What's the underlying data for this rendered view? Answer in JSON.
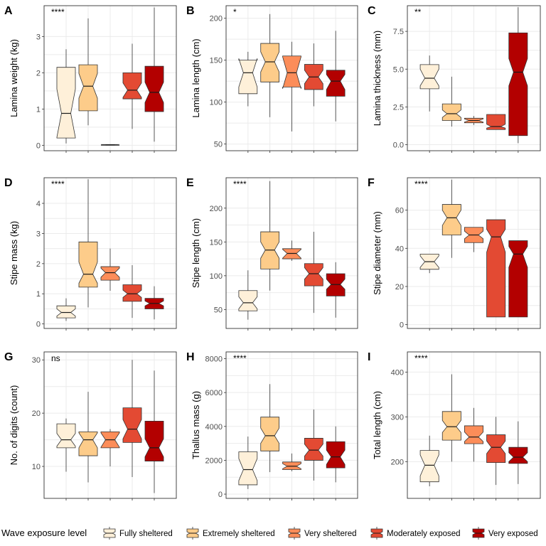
{
  "colors": [
    "#FEF0D9",
    "#FDCC8A",
    "#FC8D59",
    "#E34A33",
    "#B30000"
  ],
  "legend": {
    "title": "Wave exposure level",
    "entries": [
      "Fully sheltered",
      "Extremely sheltered",
      "Very sheltered",
      "Moderately exposed",
      "Very exposed"
    ]
  },
  "chart_data": [
    {
      "type": "box",
      "letter": "A",
      "sig": "****",
      "ylabel": "Lamina weight (kg)",
      "ylim": [
        -0.15,
        3.85
      ],
      "yticks": [
        0,
        1,
        2,
        3
      ],
      "boxes": [
        {
          "min": 0.05,
          "q1": 0.2,
          "med": 0.88,
          "q3": 2.15,
          "max": 2.65,
          "nlo": 0.22,
          "nhi": 1.55
        },
        {
          "min": 0.55,
          "q1": 0.95,
          "med": 1.63,
          "q3": 2.22,
          "max": 3.5,
          "nlo": 1.3,
          "nhi": 1.98
        },
        {
          "min": 0.0,
          "q1": 0.0,
          "med": 0.01,
          "q3": 0.02,
          "max": 0.02,
          "nlo": 0.0,
          "nhi": 0.02
        },
        {
          "min": 0.45,
          "q1": 1.28,
          "med": 1.52,
          "q3": 2.0,
          "max": 2.8,
          "nlo": 1.32,
          "nhi": 1.72
        },
        {
          "min": 0.1,
          "q1": 0.93,
          "med": 1.46,
          "q3": 2.18,
          "max": 3.8,
          "nlo": 1.18,
          "nhi": 1.74
        }
      ]
    },
    {
      "type": "box",
      "letter": "B",
      "sig": "*",
      "ylabel": "Lamina length (cm)",
      "ylim": [
        42,
        215
      ],
      "yticks": [
        50,
        100,
        150,
        200
      ],
      "boxes": [
        {
          "min": 95,
          "q1": 110,
          "med": 135,
          "q3": 150,
          "max": 160,
          "nlo": 118,
          "nhi": 152
        },
        {
          "min": 82,
          "q1": 124,
          "med": 148,
          "q3": 170,
          "max": 205,
          "nlo": 136,
          "nhi": 160
        },
        {
          "min": 65,
          "q1": 118,
          "med": 135,
          "q3": 155,
          "max": 172,
          "nlo": 116,
          "nhi": 154
        },
        {
          "min": 95,
          "q1": 115,
          "med": 130,
          "q3": 145,
          "max": 170,
          "nlo": 122,
          "nhi": 138
        },
        {
          "min": 77,
          "q1": 107,
          "med": 125,
          "q3": 138,
          "max": 185,
          "nlo": 115,
          "nhi": 133
        }
      ]
    },
    {
      "type": "box",
      "letter": "C",
      "sig": "**",
      "ylabel": "Lamina thickness (mm)",
      "ylim": [
        -0.4,
        9.2
      ],
      "yticks": [
        0,
        2.5,
        5,
        7.5
      ],
      "tickfmt": 1,
      "boxes": [
        {
          "min": 2.2,
          "q1": 3.7,
          "med": 4.4,
          "q3": 5.3,
          "max": 5.9,
          "nlo": 3.9,
          "nhi": 5.0
        },
        {
          "min": 1.2,
          "q1": 1.6,
          "med": 2.05,
          "q3": 2.7,
          "max": 4.5,
          "nlo": 1.8,
          "nhi": 2.3
        },
        {
          "min": 1.3,
          "q1": 1.45,
          "med": 1.6,
          "q3": 1.75,
          "max": 1.9,
          "nlo": 1.5,
          "nhi": 1.7
        },
        {
          "min": 1.0,
          "q1": 1.0,
          "med": 1.2,
          "q3": 2.0,
          "max": 2.0,
          "nlo": 1.1,
          "nhi": 1.35
        },
        {
          "min": 0.1,
          "q1": 0.6,
          "med": 4.8,
          "q3": 7.4,
          "max": 9.1,
          "nlo": 3.9,
          "nhi": 5.7
        }
      ]
    },
    {
      "type": "box",
      "letter": "D",
      "sig": "****",
      "ylabel": "Stipe mass (kg)",
      "ylim": [
        -0.15,
        4.85
      ],
      "yticks": [
        0,
        1,
        2,
        3,
        4
      ],
      "boxes": [
        {
          "min": 0.1,
          "q1": 0.2,
          "med": 0.38,
          "q3": 0.6,
          "max": 0.85,
          "nlo": 0.26,
          "nhi": 0.5
        },
        {
          "min": 0.55,
          "q1": 1.22,
          "med": 1.65,
          "q3": 2.72,
          "max": 4.8,
          "nlo": 1.35,
          "nhi": 2.05
        },
        {
          "min": 1.1,
          "q1": 1.45,
          "med": 1.7,
          "q3": 1.9,
          "max": 2.5,
          "nlo": 1.55,
          "nhi": 1.85
        },
        {
          "min": 0.2,
          "q1": 0.75,
          "med": 1.0,
          "q3": 1.3,
          "max": 1.95,
          "nlo": 0.88,
          "nhi": 1.12
        },
        {
          "min": 0.15,
          "q1": 0.5,
          "med": 0.68,
          "q3": 0.85,
          "max": 1.25,
          "nlo": 0.6,
          "nhi": 0.76
        }
      ]
    },
    {
      "type": "box",
      "letter": "E",
      "sig": "****",
      "ylabel": "Stipe length (cm)",
      "ylim": [
        22,
        245
      ],
      "yticks": [
        50,
        100,
        150,
        200
      ],
      "boxes": [
        {
          "min": 35,
          "q1": 48,
          "med": 60,
          "q3": 78,
          "max": 108,
          "nlo": 51,
          "nhi": 69
        },
        {
          "min": 78,
          "q1": 110,
          "med": 138,
          "q3": 165,
          "max": 240,
          "nlo": 126,
          "nhi": 150
        },
        {
          "min": 122,
          "q1": 125,
          "med": 133,
          "q3": 140,
          "max": 152,
          "nlo": 126,
          "nhi": 139
        },
        {
          "min": 45,
          "q1": 85,
          "med": 103,
          "q3": 118,
          "max": 165,
          "nlo": 95,
          "nhi": 112
        },
        {
          "min": 38,
          "q1": 70,
          "med": 87,
          "q3": 103,
          "max": 120,
          "nlo": 80,
          "nhi": 95
        }
      ]
    },
    {
      "type": "box",
      "letter": "F",
      "sig": "****",
      "ylabel": "Stipe diameter (mm)",
      "ylim": [
        -2,
        77
      ],
      "yticks": [
        0,
        20,
        40,
        60
      ],
      "boxes": [
        {
          "min": 27,
          "q1": 29,
          "med": 33,
          "q3": 37,
          "max": 37,
          "nlo": 30,
          "nhi": 36
        },
        {
          "min": 35,
          "q1": 47,
          "med": 56,
          "q3": 63,
          "max": 76,
          "nlo": 52,
          "nhi": 60
        },
        {
          "min": 38,
          "q1": 43,
          "med": 47,
          "q3": 51,
          "max": 51,
          "nlo": 45,
          "nhi": 49
        },
        {
          "min": 4,
          "q1": 4,
          "med": 46,
          "q3": 55,
          "max": 55,
          "nlo": 38,
          "nhi": 50
        },
        {
          "min": 4,
          "q1": 4,
          "med": 37,
          "q3": 44,
          "max": 44,
          "nlo": 30,
          "nhi": 41
        }
      ]
    },
    {
      "type": "box",
      "letter": "G",
      "sig": "ns",
      "ylabel": "No. of digits (count)",
      "ylim": [
        4,
        31.5
      ],
      "yticks": [
        10,
        20,
        30
      ],
      "boxes": [
        {
          "min": 9,
          "q1": 13.5,
          "med": 15,
          "q3": 18,
          "max": 19,
          "nlo": 13.8,
          "nhi": 16.2
        },
        {
          "min": 7,
          "q1": 12,
          "med": 15,
          "q3": 16.5,
          "max": 24,
          "nlo": 13.5,
          "nhi": 16.3
        },
        {
          "min": 10,
          "q1": 13.5,
          "med": 15,
          "q3": 16.5,
          "max": 17,
          "nlo": 13.6,
          "nhi": 16.3
        },
        {
          "min": 8,
          "q1": 14.5,
          "med": 17,
          "q3": 21,
          "max": 30,
          "nlo": 15.2,
          "nhi": 18.8
        },
        {
          "min": 5,
          "q1": 11,
          "med": 13.5,
          "q3": 18.5,
          "max": 28,
          "nlo": 11.8,
          "nhi": 15.2
        }
      ]
    },
    {
      "type": "box",
      "letter": "H",
      "sig": "****",
      "ylabel": "Thallus mass (g)",
      "ylim": [
        -250,
        8400
      ],
      "yticks": [
        0,
        2000,
        4000,
        6000,
        8000
      ],
      "boxes": [
        {
          "min": 300,
          "q1": 550,
          "med": 1450,
          "q3": 2500,
          "max": 3400,
          "nlo": 800,
          "nhi": 2100
        },
        {
          "min": 1300,
          "q1": 2550,
          "med": 3450,
          "q3": 4550,
          "max": 6500,
          "nlo": 3000,
          "nhi": 3900
        },
        {
          "min": 1350,
          "q1": 1450,
          "med": 1650,
          "q3": 1900,
          "max": 2400,
          "nlo": 1500,
          "nhi": 1800
        },
        {
          "min": 800,
          "q1": 2000,
          "med": 2600,
          "q3": 3300,
          "max": 5000,
          "nlo": 2250,
          "nhi": 2950
        },
        {
          "min": 700,
          "q1": 1550,
          "med": 2200,
          "q3": 3100,
          "max": 4000,
          "nlo": 1750,
          "nhi": 2600
        }
      ]
    },
    {
      "type": "box",
      "letter": "I",
      "sig": "****",
      "ylabel": "Total length (cm)",
      "ylim": [
        118,
        445
      ],
      "yticks": [
        200,
        300,
        400
      ],
      "boxes": [
        {
          "min": 145,
          "q1": 155,
          "med": 192,
          "q3": 225,
          "max": 258,
          "nlo": 168,
          "nhi": 215
        },
        {
          "min": 200,
          "q1": 248,
          "med": 278,
          "q3": 312,
          "max": 395,
          "nlo": 265,
          "nhi": 292
        },
        {
          "min": 200,
          "q1": 240,
          "med": 255,
          "q3": 280,
          "max": 320,
          "nlo": 245,
          "nhi": 266
        },
        {
          "min": 148,
          "q1": 198,
          "med": 232,
          "q3": 260,
          "max": 300,
          "nlo": 218,
          "nhi": 246
        },
        {
          "min": 150,
          "q1": 196,
          "med": 210,
          "q3": 232,
          "max": 290,
          "nlo": 200,
          "nhi": 220
        }
      ]
    }
  ]
}
